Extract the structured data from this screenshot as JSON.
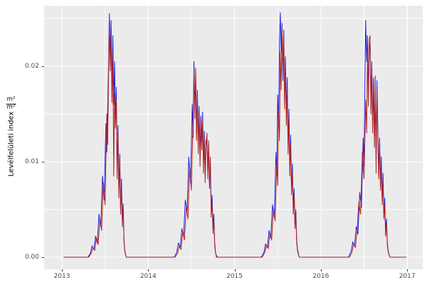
{
  "chart_data": {
    "type": "line",
    "title": "",
    "xlabel": "",
    "ylabel": {
      "text": "Levélfelületi index",
      "frac_num": "m²",
      "frac_den": "m²"
    },
    "panel_bg": "#EBEBEB",
    "grid_color": "#FFFFFF",
    "tick_color": "#333333",
    "tick_text_color": "#4D4D4D",
    "legend": "none",
    "x_domain": [
      2012.794,
      2017.18
    ],
    "y_domain": [
      -0.00127,
      0.02634
    ],
    "x_major_ticks": [
      2013,
      2014,
      2015,
      2016,
      2017
    ],
    "x_tick_labels": [
      "2013",
      "2014",
      "2015",
      "2016",
      "2017"
    ],
    "x_minor_ticks": [
      2013.5,
      2014.5,
      2015.5,
      2016.5
    ],
    "y_major_ticks": [
      0,
      0.01,
      0.02
    ],
    "y_tick_labels": [
      "0.00",
      "0.01",
      "0.02"
    ],
    "y_minor_ticks": [
      0.005,
      0.015,
      0.025
    ],
    "series": [
      {
        "name": "series-blue",
        "color": "#2020DD",
        "points": [
          [
            2013.02,
            0
          ],
          [
            2013.3,
            0
          ],
          [
            2013.33,
            0.0004
          ],
          [
            2013.35,
            0.0012
          ],
          [
            2013.37,
            0.0008
          ],
          [
            2013.39,
            0.0022
          ],
          [
            2013.41,
            0.0015
          ],
          [
            2013.43,
            0.0045
          ],
          [
            2013.45,
            0.0032
          ],
          [
            2013.47,
            0.0085
          ],
          [
            2013.49,
            0.006
          ],
          [
            2013.51,
            0.014
          ],
          [
            2013.52,
            0.011
          ],
          [
            2013.54,
            0.02
          ],
          [
            2013.55,
            0.0255
          ],
          [
            2013.56,
            0.021
          ],
          [
            2013.57,
            0.0248
          ],
          [
            2013.58,
            0.018
          ],
          [
            2013.59,
            0.0232
          ],
          [
            2013.6,
            0.016
          ],
          [
            2013.61,
            0.0205
          ],
          [
            2013.62,
            0.0142
          ],
          [
            2013.63,
            0.0178
          ],
          [
            2013.64,
            0.0092
          ],
          [
            2013.65,
            0.0138
          ],
          [
            2013.66,
            0.007
          ],
          [
            2013.67,
            0.0108
          ],
          [
            2013.68,
            0.0052
          ],
          [
            2013.69,
            0.0082
          ],
          [
            2013.7,
            0.0038
          ],
          [
            2013.71,
            0.0056
          ],
          [
            2013.72,
            0.0018
          ],
          [
            2013.73,
            0.0006
          ],
          [
            2013.745,
            0
          ],
          [
            2014.3,
            0
          ],
          [
            2014.33,
            0.0005
          ],
          [
            2014.35,
            0.0015
          ],
          [
            2014.37,
            0.001
          ],
          [
            2014.39,
            0.003
          ],
          [
            2014.41,
            0.0022
          ],
          [
            2014.43,
            0.006
          ],
          [
            2014.45,
            0.0048
          ],
          [
            2014.47,
            0.0105
          ],
          [
            2014.49,
            0.0078
          ],
          [
            2014.51,
            0.016
          ],
          [
            2014.52,
            0.0125
          ],
          [
            2014.53,
            0.0205
          ],
          [
            2014.54,
            0.0155
          ],
          [
            2014.55,
            0.019
          ],
          [
            2014.56,
            0.013
          ],
          [
            2014.57,
            0.0175
          ],
          [
            2014.58,
            0.0118
          ],
          [
            2014.59,
            0.0158
          ],
          [
            2014.6,
            0.0105
          ],
          [
            2014.61,
            0.0148
          ],
          [
            2014.62,
            0.0122
          ],
          [
            2014.63,
            0.0152
          ],
          [
            2014.64,
            0.0098
          ],
          [
            2014.65,
            0.0132
          ],
          [
            2014.66,
            0.0088
          ],
          [
            2014.67,
            0.0122
          ],
          [
            2014.68,
            0.0125
          ],
          [
            2014.69,
            0.009
          ],
          [
            2014.7,
            0.0118
          ],
          [
            2014.71,
            0.0072
          ],
          [
            2014.72,
            0.0095
          ],
          [
            2014.73,
            0.0048
          ],
          [
            2014.74,
            0.0065
          ],
          [
            2014.75,
            0.0032
          ],
          [
            2014.76,
            0.0045
          ],
          [
            2014.77,
            0.0015
          ],
          [
            2014.78,
            0.0005
          ],
          [
            2014.79,
            0
          ],
          [
            2015.31,
            0
          ],
          [
            2015.34,
            0.0005
          ],
          [
            2015.36,
            0.0014
          ],
          [
            2015.38,
            0.001
          ],
          [
            2015.4,
            0.0028
          ],
          [
            2015.42,
            0.002
          ],
          [
            2015.44,
            0.0055
          ],
          [
            2015.46,
            0.0042
          ],
          [
            2015.48,
            0.011
          ],
          [
            2015.49,
            0.0085
          ],
          [
            2015.5,
            0.017
          ],
          [
            2015.51,
            0.0135
          ],
          [
            2015.52,
            0.0225
          ],
          [
            2015.53,
            0.0256
          ],
          [
            2015.54,
            0.0215
          ],
          [
            2015.55,
            0.0245
          ],
          [
            2015.56,
            0.0185
          ],
          [
            2015.57,
            0.0238
          ],
          [
            2015.58,
            0.0165
          ],
          [
            2015.59,
            0.021
          ],
          [
            2015.6,
            0.0148
          ],
          [
            2015.61,
            0.0188
          ],
          [
            2015.62,
            0.0118
          ],
          [
            2015.63,
            0.0155
          ],
          [
            2015.64,
            0.0095
          ],
          [
            2015.65,
            0.0128
          ],
          [
            2015.66,
            0.0072
          ],
          [
            2015.67,
            0.0098
          ],
          [
            2015.68,
            0.0052
          ],
          [
            2015.69,
            0.0072
          ],
          [
            2015.7,
            0.0035
          ],
          [
            2015.71,
            0.005
          ],
          [
            2015.72,
            0.0018
          ],
          [
            2015.73,
            0.0008
          ],
          [
            2015.75,
            0
          ],
          [
            2016.32,
            0
          ],
          [
            2016.35,
            0.0006
          ],
          [
            2016.37,
            0.0016
          ],
          [
            2016.39,
            0.0012
          ],
          [
            2016.41,
            0.0032
          ],
          [
            2016.43,
            0.0024
          ],
          [
            2016.45,
            0.0068
          ],
          [
            2016.47,
            0.0052
          ],
          [
            2016.49,
            0.0125
          ],
          [
            2016.5,
            0.0095
          ],
          [
            2016.51,
            0.0185
          ],
          [
            2016.52,
            0.0248
          ],
          [
            2016.53,
            0.0205
          ],
          [
            2016.54,
            0.0232
          ],
          [
            2016.55,
            0.0172
          ],
          [
            2016.56,
            0.0215
          ],
          [
            2016.57,
            0.0225
          ],
          [
            2016.58,
            0.0162
          ],
          [
            2016.59,
            0.0205
          ],
          [
            2016.6,
            0.0142
          ],
          [
            2016.61,
            0.0188
          ],
          [
            2016.62,
            0.0125
          ],
          [
            2016.63,
            0.0165
          ],
          [
            2016.64,
            0.0098
          ],
          [
            2016.65,
            0.0185
          ],
          [
            2016.66,
            0.0135
          ],
          [
            2016.67,
            0.0092
          ],
          [
            2016.68,
            0.0125
          ],
          [
            2016.69,
            0.0078
          ],
          [
            2016.7,
            0.0105
          ],
          [
            2016.71,
            0.0062
          ],
          [
            2016.72,
            0.0088
          ],
          [
            2016.73,
            0.0045
          ],
          [
            2016.74,
            0.0062
          ],
          [
            2016.75,
            0.0028
          ],
          [
            2016.76,
            0.004
          ],
          [
            2016.77,
            0.0015
          ],
          [
            2016.78,
            0.0006
          ],
          [
            2016.8,
            0
          ],
          [
            2016.99,
            0
          ]
        ]
      },
      {
        "name": "series-red",
        "color": "#B22222",
        "points": [
          [
            2013.02,
            0
          ],
          [
            2013.31,
            0
          ],
          [
            2013.34,
            0.0004
          ],
          [
            2013.36,
            0.001
          ],
          [
            2013.38,
            0.0007
          ],
          [
            2013.4,
            0.002
          ],
          [
            2013.42,
            0.0013
          ],
          [
            2013.44,
            0.004
          ],
          [
            2013.46,
            0.0028
          ],
          [
            2013.48,
            0.0078
          ],
          [
            2013.5,
            0.0055
          ],
          [
            2013.52,
            0.015
          ],
          [
            2013.53,
            0.0118
          ],
          [
            2013.54,
            0.0185
          ],
          [
            2013.55,
            0.024
          ],
          [
            2013.56,
            0.0195
          ],
          [
            2013.57,
            0.0235
          ],
          [
            2013.58,
            0.0162
          ],
          [
            2013.59,
            0.0215
          ],
          [
            2013.6,
            0.0085
          ],
          [
            2013.61,
            0.0172
          ],
          [
            2013.62,
            0.0135
          ],
          [
            2013.63,
            0.0165
          ],
          [
            2013.64,
            0.0082
          ],
          [
            2013.65,
            0.0128
          ],
          [
            2013.66,
            0.0062
          ],
          [
            2013.67,
            0.0098
          ],
          [
            2013.68,
            0.0045
          ],
          [
            2013.69,
            0.0075
          ],
          [
            2013.7,
            0.0032
          ],
          [
            2013.71,
            0.005
          ],
          [
            2013.72,
            0.0015
          ],
          [
            2013.73,
            0.0005
          ],
          [
            2013.745,
            0
          ],
          [
            2014.31,
            0
          ],
          [
            2014.34,
            0.0004
          ],
          [
            2014.36,
            0.0012
          ],
          [
            2014.38,
            0.0008
          ],
          [
            2014.4,
            0.0026
          ],
          [
            2014.42,
            0.0018
          ],
          [
            2014.44,
            0.0052
          ],
          [
            2014.46,
            0.004
          ],
          [
            2014.48,
            0.0095
          ],
          [
            2014.5,
            0.007
          ],
          [
            2014.52,
            0.0148
          ],
          [
            2014.53,
            0.0195
          ],
          [
            2014.54,
            0.0145
          ],
          [
            2014.55,
            0.0198
          ],
          [
            2014.56,
            0.0122
          ],
          [
            2014.57,
            0.0168
          ],
          [
            2014.58,
            0.0108
          ],
          [
            2014.59,
            0.015
          ],
          [
            2014.6,
            0.0095
          ],
          [
            2014.61,
            0.014
          ],
          [
            2014.62,
            0.0112
          ],
          [
            2014.63,
            0.0145
          ],
          [
            2014.64,
            0.0088
          ],
          [
            2014.65,
            0.0125
          ],
          [
            2014.66,
            0.0078
          ],
          [
            2014.67,
            0.0115
          ],
          [
            2014.68,
            0.013
          ],
          [
            2014.69,
            0.0082
          ],
          [
            2014.7,
            0.0122
          ],
          [
            2014.71,
            0.0078
          ],
          [
            2014.72,
            0.0105
          ],
          [
            2014.73,
            0.0042
          ],
          [
            2014.74,
            0.0058
          ],
          [
            2014.75,
            0.0025
          ],
          [
            2014.76,
            0.0038
          ],
          [
            2014.77,
            0.0012
          ],
          [
            2014.78,
            0.0004
          ],
          [
            2014.8,
            0
          ],
          [
            2015.32,
            0
          ],
          [
            2015.35,
            0.0005
          ],
          [
            2015.37,
            0.0012
          ],
          [
            2015.39,
            0.0009
          ],
          [
            2015.41,
            0.0025
          ],
          [
            2015.43,
            0.0018
          ],
          [
            2015.45,
            0.005
          ],
          [
            2015.47,
            0.0038
          ],
          [
            2015.49,
            0.01
          ],
          [
            2015.5,
            0.0075
          ],
          [
            2015.51,
            0.0155
          ],
          [
            2015.52,
            0.0122
          ],
          [
            2015.53,
            0.0215
          ],
          [
            2015.54,
            0.0175
          ],
          [
            2015.55,
            0.024
          ],
          [
            2015.56,
            0.0198
          ],
          [
            2015.57,
            0.0228
          ],
          [
            2015.58,
            0.0155
          ],
          [
            2015.59,
            0.02
          ],
          [
            2015.6,
            0.0138
          ],
          [
            2015.61,
            0.0178
          ],
          [
            2015.62,
            0.0108
          ],
          [
            2015.63,
            0.0148
          ],
          [
            2015.64,
            0.0085
          ],
          [
            2015.65,
            0.0118
          ],
          [
            2015.66,
            0.0065
          ],
          [
            2015.67,
            0.009
          ],
          [
            2015.68,
            0.0045
          ],
          [
            2015.69,
            0.0065
          ],
          [
            2015.7,
            0.003
          ],
          [
            2015.71,
            0.0045
          ],
          [
            2015.72,
            0.0015
          ],
          [
            2015.73,
            0.0006
          ],
          [
            2015.75,
            0
          ],
          [
            2016.33,
            0
          ],
          [
            2016.36,
            0.0005
          ],
          [
            2016.38,
            0.0014
          ],
          [
            2016.4,
            0.001
          ],
          [
            2016.42,
            0.0028
          ],
          [
            2016.44,
            0.0058
          ],
          [
            2016.46,
            0.0045
          ],
          [
            2016.48,
            0.011
          ],
          [
            2016.5,
            0.0082
          ],
          [
            2016.52,
            0.0165
          ],
          [
            2016.53,
            0.013
          ],
          [
            2016.54,
            0.0215
          ],
          [
            2016.55,
            0.0158
          ],
          [
            2016.56,
            0.0228
          ],
          [
            2016.57,
            0.0232
          ],
          [
            2016.58,
            0.015
          ],
          [
            2016.59,
            0.0195
          ],
          [
            2016.6,
            0.013
          ],
          [
            2016.61,
            0.0178
          ],
          [
            2016.62,
            0.0115
          ],
          [
            2016.63,
            0.019
          ],
          [
            2016.64,
            0.0088
          ],
          [
            2016.65,
            0.0175
          ],
          [
            2016.66,
            0.0125
          ],
          [
            2016.67,
            0.0082
          ],
          [
            2016.68,
            0.0115
          ],
          [
            2016.69,
            0.007
          ],
          [
            2016.7,
            0.0098
          ],
          [
            2016.71,
            0.0055
          ],
          [
            2016.72,
            0.008
          ],
          [
            2016.73,
            0.004
          ],
          [
            2016.74,
            0.0055
          ],
          [
            2016.75,
            0.0022
          ],
          [
            2016.76,
            0.0035
          ],
          [
            2016.77,
            0.0012
          ],
          [
            2016.78,
            0.0005
          ],
          [
            2016.8,
            0
          ],
          [
            2016.99,
            0
          ]
        ]
      }
    ]
  }
}
